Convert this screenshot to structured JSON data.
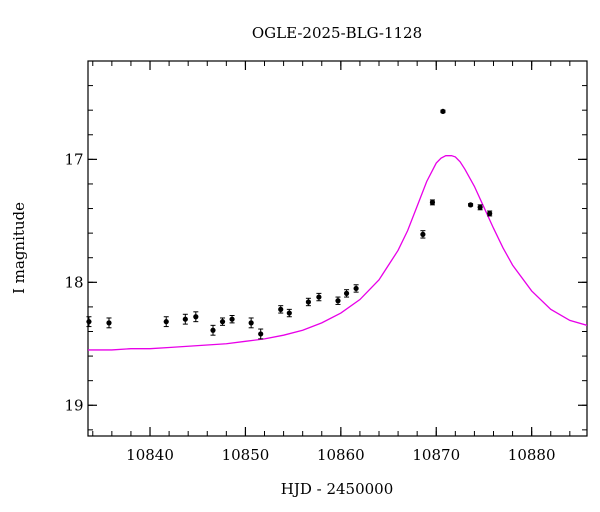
{
  "chart_data": {
    "type": "scatter",
    "title": "OGLE-2025-BLG-1128",
    "xlabel": "HJD - 2450000",
    "ylabel": "I magnitude",
    "xlim": [
      10833.5,
      10885.8
    ],
    "ylim": [
      19.25,
      16.2
    ],
    "y_inverted": true,
    "x_major_ticks": [
      10840,
      10850,
      10860,
      10870,
      10880
    ],
    "x_minor_step": 2,
    "y_major_ticks": [
      17,
      18,
      19
    ],
    "y_minor_step": 0.2,
    "grid": false,
    "points": {
      "name": "",
      "color": "#000000",
      "x": [
        10833.6,
        10835.7,
        10841.7,
        10843.7,
        10844.8,
        10846.6,
        10847.6,
        10848.6,
        10850.6,
        10851.6,
        10853.7,
        10854.6,
        10856.6,
        10857.7,
        10859.7,
        10860.6,
        10861.6,
        10868.6,
        10869.6,
        10870.7,
        10873.6,
        10874.6,
        10875.6
      ],
      "y": [
        18.32,
        18.33,
        18.32,
        18.3,
        18.28,
        18.39,
        18.32,
        18.3,
        18.33,
        18.42,
        18.22,
        18.25,
        18.16,
        18.12,
        18.15,
        18.09,
        18.05,
        17.61,
        17.35,
        16.61,
        17.37,
        17.39,
        17.44
      ],
      "yerr": [
        0.04,
        0.04,
        0.04,
        0.04,
        0.04,
        0.04,
        0.03,
        0.03,
        0.04,
        0.04,
        0.03,
        0.03,
        0.03,
        0.03,
        0.03,
        0.03,
        0.03,
        0.03,
        0.02,
        0.01,
        0.01,
        0.02,
        0.02
      ]
    },
    "model": {
      "name": "",
      "color": "#e800e8",
      "x": [
        10833.5,
        10836,
        10838,
        10840,
        10842,
        10844,
        10846,
        10848,
        10850,
        10852,
        10854,
        10856,
        10858,
        10860,
        10862,
        10864,
        10866,
        10867,
        10868,
        10869,
        10870,
        10870.5,
        10871,
        10871.3,
        10871.6,
        10872,
        10872.5,
        10873,
        10874,
        10875,
        10876,
        10877,
        10878,
        10880,
        10882,
        10884,
        10885.8
      ],
      "y": [
        18.55,
        18.55,
        18.54,
        18.54,
        18.53,
        18.52,
        18.51,
        18.5,
        18.48,
        18.46,
        18.43,
        18.39,
        18.33,
        18.25,
        18.14,
        17.98,
        17.74,
        17.58,
        17.38,
        17.18,
        17.03,
        16.99,
        16.97,
        16.97,
        16.97,
        16.98,
        17.02,
        17.08,
        17.22,
        17.39,
        17.56,
        17.72,
        17.86,
        18.07,
        18.22,
        18.31,
        18.35
      ]
    }
  }
}
